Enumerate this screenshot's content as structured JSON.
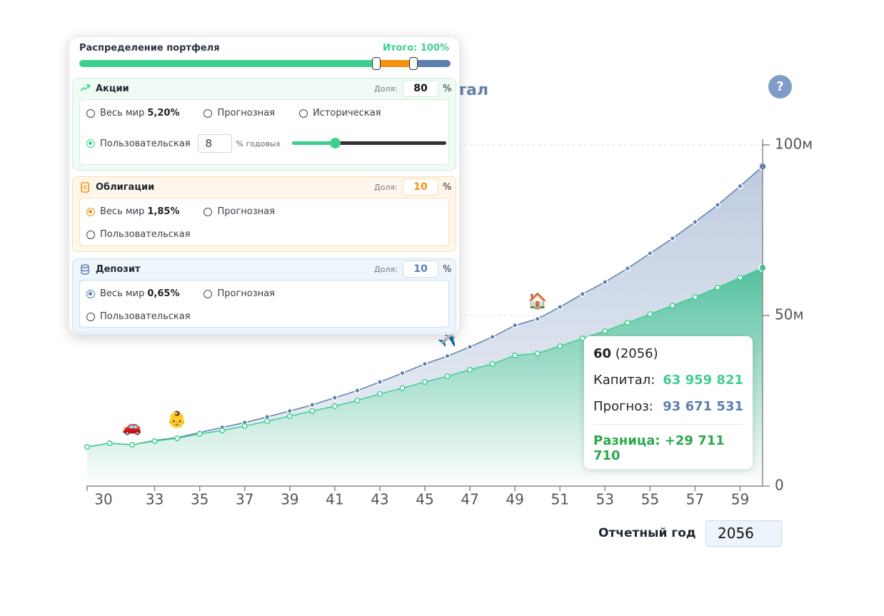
{
  "panel": {
    "title": "Распределение портфеля",
    "total": "Итого: 100%",
    "sections": [
      {
        "name": "Акции",
        "share_label": "Доля:",
        "share": 80,
        "unit": "%",
        "color": "#3ecf8e",
        "options": [
          {
            "label": "Весь мир",
            "value": "5,20%"
          },
          {
            "label": "Прогнозная"
          },
          {
            "label": "Историческая"
          },
          {
            "label": "Пользовательская"
          }
        ],
        "selected": 3,
        "custom_rate": 8,
        "custom_unit": "% годовых"
      },
      {
        "name": "Облигации",
        "share_label": "Доля:",
        "share": 10,
        "unit": "%",
        "color": "#f5900f",
        "options": [
          {
            "label": "Весь мир",
            "value": "1,85%"
          },
          {
            "label": "Прогнозная"
          },
          {
            "label": "Пользовательская"
          }
        ],
        "selected": 0
      },
      {
        "name": "Депозит",
        "share_label": "Доля:",
        "share": 10,
        "unit": "%",
        "color": "#5b80b0",
        "options": [
          {
            "label": "Весь мир",
            "value": "0,65%"
          },
          {
            "label": "Прогнозная"
          },
          {
            "label": "Пользовательская"
          }
        ],
        "selected": 0
      }
    ]
  },
  "help": "?",
  "report_year": {
    "label": "Отчетный год",
    "value": 2056
  },
  "tooltip": {
    "age": 60,
    "year": "(2056)",
    "rows": [
      {
        "label": "Капитал:",
        "value": "63 959 821",
        "color": "#3ecf8e"
      },
      {
        "label": "Прогноз:",
        "value": "93 671 531",
        "color": "#5b80b0"
      }
    ],
    "difference": "Разница: +29 711 710"
  },
  "chart_data": {
    "type": "area",
    "title": "Капитал",
    "x": [
      30,
      31,
      32,
      33,
      34,
      35,
      36,
      37,
      38,
      39,
      40,
      41,
      42,
      43,
      44,
      45,
      46,
      47,
      48,
      49,
      50,
      51,
      52,
      53,
      54,
      55,
      56,
      57,
      58,
      59,
      60
    ],
    "series": [
      {
        "name": "Прогноз",
        "color": "#5b80b0",
        "values": [
          11.5,
          12.55,
          12.1,
          13.4,
          14.2,
          15.7,
          17.2,
          18.6,
          20.3,
          22.0,
          23.8,
          25.9,
          28.0,
          30.5,
          33.1,
          35.8,
          38.1,
          40.8,
          43.7,
          47.1,
          49.0,
          52.5,
          56.3,
          59.8,
          63.8,
          68.2,
          72.6,
          77.4,
          82.4,
          87.9,
          93.671531
        ]
      },
      {
        "name": "Капитал",
        "color": "#3ecf8e",
        "values": [
          11.5,
          12.55,
          12.1,
          13.2,
          14.0,
          15.3,
          16.3,
          17.6,
          19.0,
          20.5,
          22.0,
          23.4,
          25.1,
          27.0,
          28.7,
          30.5,
          32.2,
          34.1,
          35.8,
          38.3,
          38.9,
          41.0,
          43.3,
          45.4,
          47.9,
          50.4,
          52.9,
          55.4,
          58.2,
          61.1,
          63.959821
        ]
      }
    ],
    "events": [
      {
        "x": 32,
        "label": "🚗"
      },
      {
        "x": 34,
        "label": "👶"
      },
      {
        "x": 46,
        "label": "✈️"
      },
      {
        "x": 50,
        "label": "🏠"
      }
    ],
    "xlim": [
      30,
      60
    ],
    "xticks": [
      30,
      33,
      35,
      37,
      39,
      41,
      43,
      45,
      47,
      49,
      51,
      53,
      55,
      57,
      59
    ],
    "ylim": [
      0,
      100
    ],
    "yticks": [
      0,
      {
        "value": 50,
        "label": "50м"
      },
      {
        "value": 100,
        "label": "100м"
      }
    ],
    "grid": true
  }
}
